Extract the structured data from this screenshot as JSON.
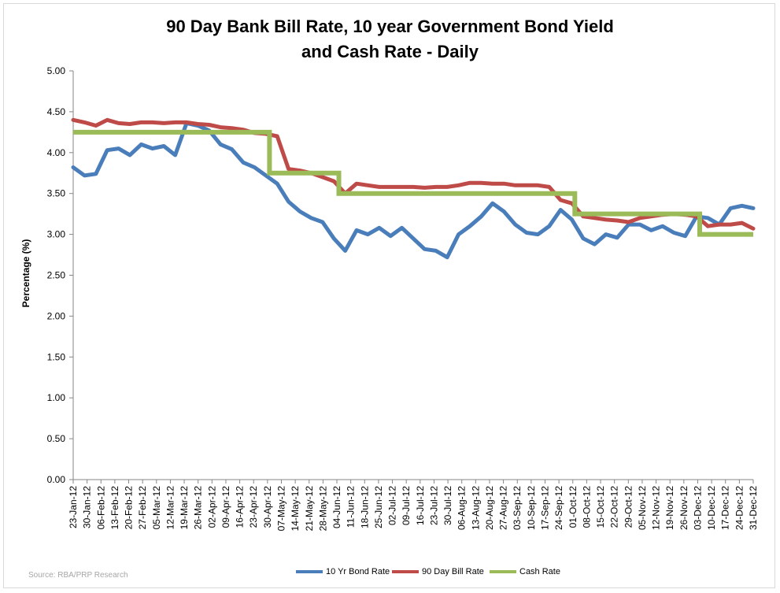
{
  "chart_data": {
    "type": "line",
    "title_line1": "90 Day Bank Bill Rate, 10 year Government Bond Yield",
    "title_line2": "and Cash Rate - Daily",
    "ylabel": "Percentage (%)",
    "xlabel": "",
    "ylim": [
      0,
      5
    ],
    "yticks": [
      "0.00",
      "0.50",
      "1.00",
      "1.50",
      "2.00",
      "2.50",
      "3.00",
      "3.50",
      "4.00",
      "4.50",
      "5.00"
    ],
    "xticks": [
      "23-Jan-12",
      "30-Jan-12",
      "06-Feb-12",
      "13-Feb-12",
      "20-Feb-12",
      "27-Feb-12",
      "05-Mar-12",
      "12-Mar-12",
      "19-Mar-12",
      "26-Mar-12",
      "02-Apr-12",
      "09-Apr-12",
      "16-Apr-12",
      "23-Apr-12",
      "30-Apr-12",
      "07-May-12",
      "14-May-12",
      "21-May-12",
      "28-May-12",
      "04-Jun-12",
      "11-Jun-12",
      "18-Jun-12",
      "25-Jun-12",
      "02-Jul-12",
      "09-Jul-12",
      "16-Jul-12",
      "23-Jul-12",
      "30-Jul-12",
      "06-Aug-12",
      "13-Aug-12",
      "20-Aug-12",
      "27-Aug-12",
      "03-Sep-12",
      "10-Sep-12",
      "17-Sep-12",
      "24-Sep-12",
      "01-Oct-12",
      "08-Oct-12",
      "15-Oct-12",
      "22-Oct-12",
      "29-Oct-12",
      "05-Nov-12",
      "12-Nov-12",
      "19-Nov-12",
      "26-Nov-12",
      "03-Dec-12",
      "10-Dec-12",
      "17-Dec-12",
      "24-Dec-12",
      "31-Dec-12"
    ],
    "grid": false,
    "legend_position": "bottom",
    "series": [
      {
        "name": "10 Yr Bond Rate",
        "color": "#4a7ebb",
        "values": [
          3.82,
          3.72,
          3.74,
          4.03,
          4.05,
          3.97,
          4.1,
          4.05,
          4.08,
          3.97,
          4.36,
          4.33,
          4.27,
          4.1,
          4.04,
          3.88,
          3.82,
          3.72,
          3.62,
          3.4,
          3.28,
          3.2,
          3.15,
          2.95,
          2.8,
          3.05,
          3.0,
          3.08,
          2.98,
          3.08,
          2.95,
          2.82,
          2.8,
          2.72,
          3.0,
          3.1,
          3.22,
          3.38,
          3.28,
          3.12,
          3.02,
          3.0,
          3.1,
          3.3,
          3.18,
          2.95,
          2.88,
          3.0,
          2.96,
          3.12,
          3.12,
          3.05,
          3.1,
          3.02,
          2.98,
          3.22,
          3.2,
          3.12,
          3.32,
          3.35,
          3.32
        ]
      },
      {
        "name": "90 Day Bill Rate",
        "color": "#be4b48",
        "values": [
          4.4,
          4.37,
          4.33,
          4.4,
          4.36,
          4.35,
          4.37,
          4.37,
          4.36,
          4.37,
          4.37,
          4.35,
          4.34,
          4.31,
          4.3,
          4.28,
          4.24,
          4.23,
          4.2,
          3.8,
          3.78,
          3.75,
          3.7,
          3.65,
          3.5,
          3.62,
          3.6,
          3.58,
          3.58,
          3.58,
          3.58,
          3.57,
          3.58,
          3.58,
          3.6,
          3.63,
          3.63,
          3.62,
          3.62,
          3.6,
          3.6,
          3.6,
          3.58,
          3.42,
          3.38,
          3.22,
          3.2,
          3.18,
          3.17,
          3.15,
          3.2,
          3.22,
          3.24,
          3.25,
          3.24,
          3.22,
          3.1,
          3.12,
          3.12,
          3.14,
          3.07
        ]
      },
      {
        "name": "Cash Rate",
        "color": "#9bbb59",
        "steps": [
          {
            "from": "23-Jan-12",
            "value": 4.25
          },
          {
            "from": "01-May-12",
            "value": 3.75
          },
          {
            "from": "05-Jun-12",
            "value": 3.5
          },
          {
            "from": "02-Oct-12",
            "value": 3.25
          },
          {
            "from": "04-Dec-12",
            "value": 3.0
          }
        ]
      }
    ]
  },
  "source_text": "Source: RBA/PRP Research"
}
